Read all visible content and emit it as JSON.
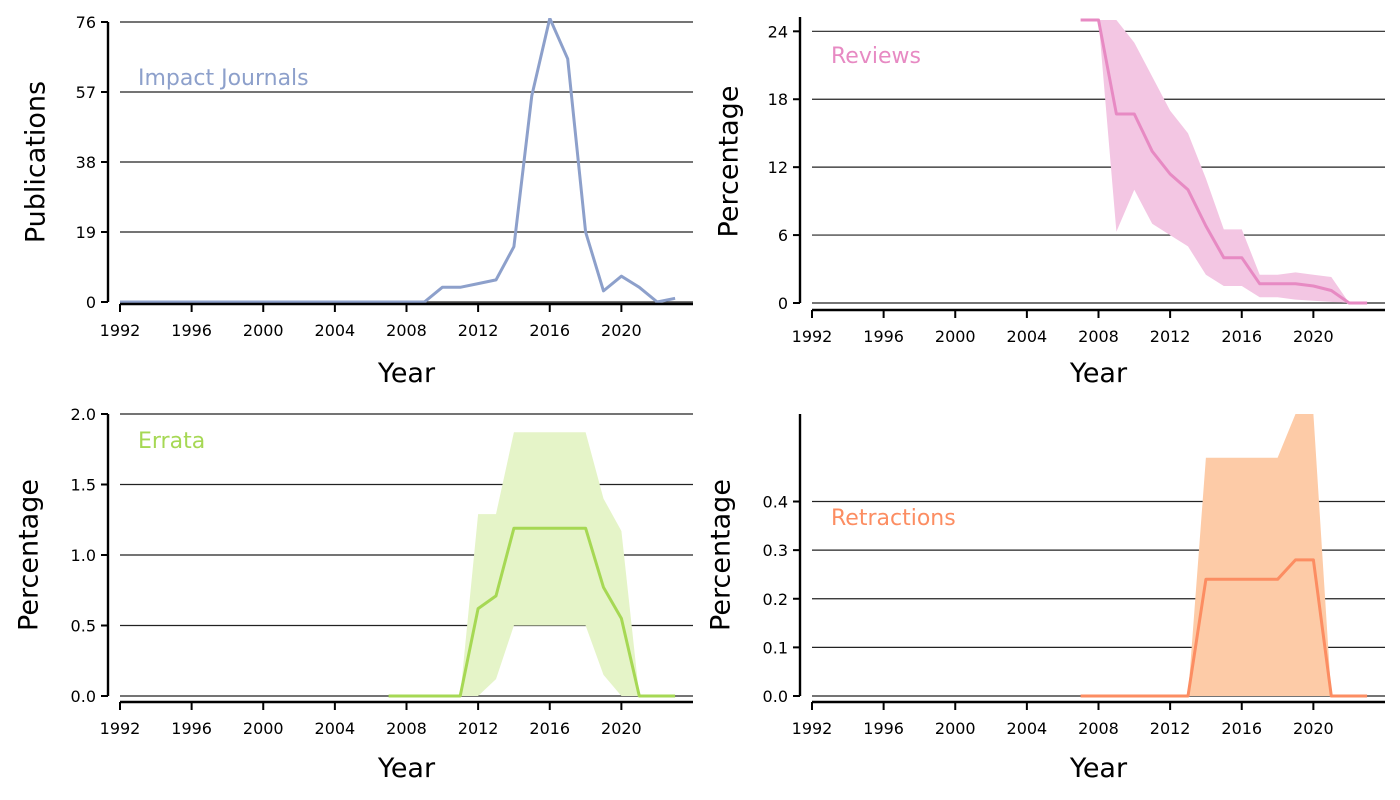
{
  "chart_data": [
    {
      "type": "line",
      "series_label": "Impact Journals",
      "color": "#8da0cb",
      "xlabel": "Year",
      "ylabel": "Publications",
      "xlim": [
        1992,
        2024
      ],
      "ylim": [
        0,
        76
      ],
      "xticks": [
        1992,
        1996,
        2000,
        2004,
        2008,
        2012,
        2016,
        2020
      ],
      "yticks": [
        0,
        19,
        38,
        57,
        76
      ],
      "ytick_labels": [
        "0",
        "19",
        "38",
        "57",
        "76"
      ],
      "grid": "horizontal",
      "x": [
        1992,
        1993,
        1994,
        1995,
        1996,
        1997,
        1998,
        1999,
        2000,
        2001,
        2002,
        2003,
        2004,
        2005,
        2006,
        2007,
        2008,
        2009,
        2010,
        2011,
        2012,
        2013,
        2014,
        2015,
        2016,
        2017,
        2018,
        2019,
        2020,
        2021,
        2022,
        2023
      ],
      "y": [
        0,
        0,
        0,
        0,
        0,
        0,
        0,
        0,
        0,
        0,
        0,
        0,
        0,
        0,
        0,
        0,
        0,
        0,
        4,
        4,
        5,
        6,
        15,
        56,
        77,
        66,
        19,
        3,
        7,
        4,
        0,
        1
      ]
    },
    {
      "type": "line",
      "series_label": "Reviews",
      "color": "#e78ac3",
      "band_color": "#f3c6e3",
      "xlabel": "Year",
      "ylabel": "Percentage",
      "xlim": [
        1992,
        2024
      ],
      "ylim": [
        0,
        25
      ],
      "xticks": [
        1992,
        1996,
        2000,
        2004,
        2008,
        2012,
        2016,
        2020
      ],
      "yticks": [
        0,
        6,
        12,
        18,
        24
      ],
      "ytick_labels": [
        "0",
        "6",
        "12",
        "18",
        "24"
      ],
      "grid": "horizontal",
      "x": [
        2007,
        2008,
        2009,
        2010,
        2011,
        2012,
        2013,
        2014,
        2015,
        2016,
        2017,
        2018,
        2019,
        2020,
        2021,
        2022,
        2023
      ],
      "y": [
        25,
        25,
        16.7,
        16.7,
        13.4,
        11.4,
        10,
        6.8,
        4,
        4,
        1.7,
        1.7,
        1.7,
        1.5,
        1.1,
        0,
        0
      ],
      "lower": [
        25,
        25,
        6.3,
        10,
        7,
        6,
        5,
        2.5,
        1.5,
        1.5,
        0.5,
        0.5,
        0.3,
        0.2,
        0.1,
        0,
        0
      ],
      "upper": [
        25,
        25,
        25,
        23,
        20,
        17,
        15,
        11,
        6.5,
        6.5,
        2.5,
        2.5,
        2.7,
        2.5,
        2.3,
        0,
        0
      ]
    },
    {
      "type": "line",
      "series_label": "Errata",
      "color": "#a6d854",
      "band_color": "#e5f4c8",
      "xlabel": "Year",
      "ylabel": "Percentage",
      "xlim": [
        1992,
        2024
      ],
      "ylim": [
        0,
        2.0
      ],
      "xticks": [
        1992,
        1996,
        2000,
        2004,
        2008,
        2012,
        2016,
        2020
      ],
      "yticks": [
        0,
        0.5,
        1.0,
        1.5,
        2.0
      ],
      "ytick_labels": [
        "0.0",
        "0.5",
        "1.0",
        "1.5",
        "2.0"
      ],
      "grid": "horizontal",
      "x": [
        2007,
        2008,
        2009,
        2010,
        2011,
        2012,
        2013,
        2014,
        2015,
        2016,
        2017,
        2018,
        2019,
        2020,
        2021,
        2022,
        2023
      ],
      "y": [
        0,
        0,
        0,
        0,
        0,
        0.62,
        0.71,
        1.19,
        1.19,
        1.19,
        1.19,
        1.19,
        0.77,
        0.55,
        0,
        0,
        0
      ],
      "lower": [
        0,
        0,
        0,
        0,
        0,
        0,
        0.12,
        0.5,
        0.5,
        0.5,
        0.5,
        0.5,
        0.15,
        0,
        0,
        0,
        0
      ],
      "upper": [
        0,
        0,
        0,
        0,
        0,
        1.29,
        1.29,
        1.87,
        1.87,
        1.87,
        1.87,
        1.87,
        1.4,
        1.17,
        0,
        0,
        0
      ]
    },
    {
      "type": "line",
      "series_label": "Retractions",
      "color": "#fc8d62",
      "band_color": "#fdcba7",
      "xlabel": "Year",
      "ylabel": "Percentage",
      "xlim": [
        1992,
        2024
      ],
      "ylim": [
        0,
        0.58
      ],
      "xticks": [
        1992,
        1996,
        2000,
        2004,
        2008,
        2012,
        2016,
        2020
      ],
      "yticks": [
        0,
        0.1,
        0.2,
        0.3,
        0.4
      ],
      "ytick_labels": [
        "0.0",
        "0.1",
        "0.2",
        "0.3",
        "0.4"
      ],
      "grid": "horizontal",
      "x": [
        2007,
        2008,
        2009,
        2010,
        2011,
        2012,
        2013,
        2014,
        2015,
        2016,
        2017,
        2018,
        2019,
        2020,
        2021,
        2022,
        2023
      ],
      "y": [
        0,
        0,
        0,
        0,
        0,
        0,
        0,
        0.24,
        0.24,
        0.24,
        0.24,
        0.24,
        0.28,
        0.28,
        0,
        0,
        0
      ],
      "lower": [
        0,
        0,
        0,
        0,
        0,
        0,
        0,
        0,
        0,
        0,
        0,
        0,
        0,
        0,
        0,
        0,
        0
      ],
      "upper": [
        0,
        0,
        0,
        0,
        0,
        0,
        0,
        0.49,
        0.49,
        0.49,
        0.49,
        0.49,
        0.58,
        0.58,
        0,
        0,
        0
      ]
    }
  ]
}
